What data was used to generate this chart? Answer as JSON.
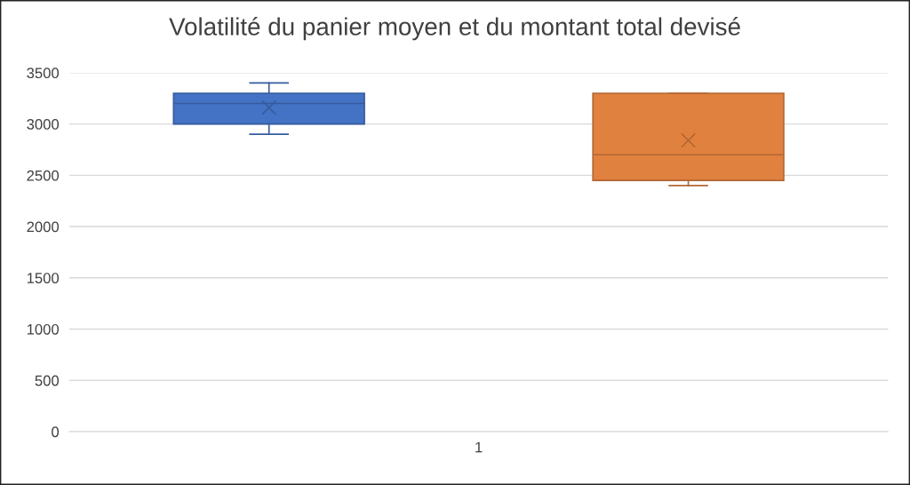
{
  "chart_data": {
    "type": "box",
    "title": "Volatilité du panier moyen et du montant total devisé",
    "categories": [
      "1"
    ],
    "series": [
      {
        "color": "#4472c4",
        "boxes": [
          {
            "low": 2900,
            "q1": 3000,
            "median": 3200,
            "q3": 3300,
            "high": 3400,
            "mean": 3160
          }
        ]
      },
      {
        "color": "#e0813f",
        "boxes": [
          {
            "low": 2400,
            "q1": 2450,
            "median": 2700,
            "q3": 3300,
            "high": 3300,
            "mean": 2840
          }
        ]
      }
    ],
    "ylim": [
      0,
      3500
    ],
    "yticks": [
      0,
      500,
      1000,
      1500,
      2000,
      2500,
      3000,
      3500
    ],
    "grid": "y"
  }
}
